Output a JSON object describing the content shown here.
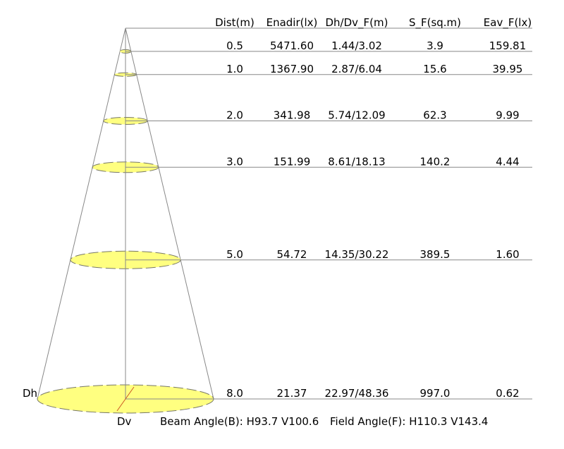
{
  "columns": [
    "Dist(m)",
    "Enadir(lx)",
    "Dh/Dv_F(m)",
    "S_F(sq.m)",
    "Eav_F(lx)"
  ],
  "rows": [
    {
      "dist": "0.5",
      "enadir": "5471.60",
      "dhdv": "1.44/3.02",
      "sf": "3.9",
      "eav": "159.81"
    },
    {
      "dist": "1.0",
      "enadir": "1367.90",
      "dhdv": "2.87/6.04",
      "sf": "15.6",
      "eav": "39.95"
    },
    {
      "dist": "2.0",
      "enadir": "341.98",
      "dhdv": "5.74/12.09",
      "sf": "62.3",
      "eav": "9.99"
    },
    {
      "dist": "3.0",
      "enadir": "151.99",
      "dhdv": "8.61/18.13",
      "sf": "140.2",
      "eav": "4.44"
    },
    {
      "dist": "5.0",
      "enadir": "54.72",
      "dhdv": "14.35/30.22",
      "sf": "389.5",
      "eav": "1.60"
    },
    {
      "dist": "8.0",
      "enadir": "21.37",
      "dhdv": "22.97/48.36",
      "sf": "997.0",
      "eav": "0.62"
    }
  ],
  "labels": {
    "dh": "Dh",
    "dv": "Dv",
    "beam_angle": "Beam Angle(B): H93.7 V100.6",
    "field_angle": "Field Angle(F): H110.3 V143.4"
  },
  "colors": {
    "ellipse_fill": "#FFFF80",
    "line": "#888888",
    "dv_line": "#CC5522"
  }
}
